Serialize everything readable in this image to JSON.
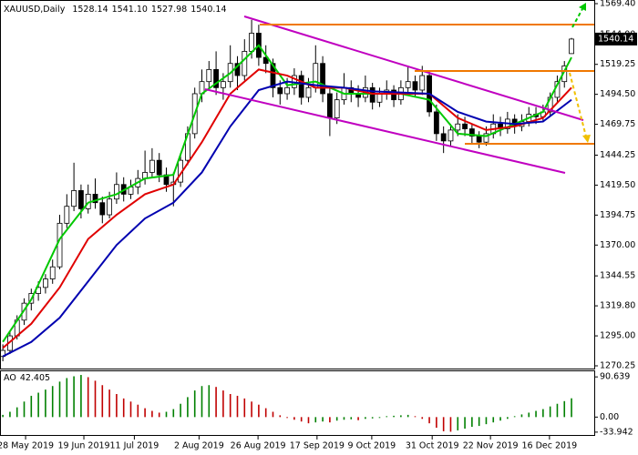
{
  "chart_data": [
    {
      "type": "candlestick",
      "title": "XAUUSD,Daily",
      "quote_labels": [
        "1528.14",
        "1541.10",
        "1527.98",
        "1540.14"
      ],
      "last_price_label": "1540.14",
      "xlim": [
        -0.4,
        83.2
      ],
      "ylim": [
        1268,
        1572.4
      ],
      "yticks": [
        {
          "value": 1569.4,
          "label": "1569.40"
        },
        {
          "value": 1544,
          "label": "1544.00"
        },
        1519.25,
        {
          "value": 1494.5,
          "label": "1494.50"
        },
        1469.75,
        1444.25,
        {
          "value": 1419.5,
          "label": "1419.50"
        },
        1394.75,
        {
          "value": 1370,
          "label": "1370.00"
        },
        1344.55,
        {
          "value": 1319.8,
          "label": "1319.80"
        },
        {
          "value": 1295,
          "label": "1295.00"
        },
        1270.25
      ],
      "up_color": "#ffffff",
      "down_color": "#000000",
      "ohlc": [
        [
          1278,
          1288,
          1274,
          1283
        ],
        [
          1283,
          1298,
          1280,
          1295
        ],
        [
          1295,
          1312,
          1292,
          1308
        ],
        [
          1308,
          1326,
          1304,
          1322
        ],
        [
          1322,
          1334,
          1316,
          1330
        ],
        [
          1330,
          1340,
          1324,
          1335
        ],
        [
          1335,
          1346,
          1330,
          1342
        ],
        [
          1342,
          1358,
          1338,
          1352
        ],
        [
          1352,
          1395,
          1350,
          1388
        ],
        [
          1388,
          1412,
          1384,
          1402
        ],
        [
          1402,
          1438,
          1398,
          1415
        ],
        [
          1415,
          1420,
          1392,
          1400
        ],
        [
          1400,
          1420,
          1396,
          1412
        ],
        [
          1412,
          1425,
          1400,
          1405
        ],
        [
          1405,
          1410,
          1388,
          1395
        ],
        [
          1395,
          1414,
          1392,
          1408
        ],
        [
          1408,
          1430,
          1404,
          1420
        ],
        [
          1420,
          1426,
          1406,
          1412
        ],
        [
          1412,
          1424,
          1408,
          1418
        ],
        [
          1418,
          1432,
          1412,
          1425
        ],
        [
          1425,
          1448,
          1420,
          1430
        ],
        [
          1430,
          1450,
          1426,
          1440
        ],
        [
          1440,
          1446,
          1422,
          1428
        ],
        [
          1428,
          1434,
          1414,
          1420
        ],
        [
          1420,
          1430,
          1402,
          1422
        ],
        [
          1422,
          1446,
          1418,
          1440
        ],
        [
          1440,
          1468,
          1436,
          1462
        ],
        [
          1462,
          1500,
          1458,
          1495
        ],
        [
          1495,
          1515,
          1488,
          1505
        ],
        [
          1505,
          1522,
          1498,
          1515
        ],
        [
          1515,
          1530,
          1494,
          1500
        ],
        [
          1500,
          1512,
          1490,
          1505
        ],
        [
          1505,
          1535,
          1500,
          1520
        ],
        [
          1520,
          1526,
          1498,
          1510
        ],
        [
          1510,
          1540,
          1506,
          1530
        ],
        [
          1530,
          1556,
          1524,
          1545
        ],
        [
          1545,
          1552,
          1518,
          1525
        ],
        [
          1525,
          1535,
          1512,
          1520
        ],
        [
          1520,
          1524,
          1492,
          1500
        ],
        [
          1500,
          1506,
          1486,
          1495
        ],
        [
          1495,
          1508,
          1490,
          1500
        ],
        [
          1500,
          1516,
          1494,
          1510
        ],
        [
          1510,
          1514,
          1486,
          1492
        ],
        [
          1492,
          1508,
          1488,
          1500
        ],
        [
          1500,
          1535,
          1496,
          1520
        ],
        [
          1520,
          1526,
          1488,
          1495
        ],
        [
          1495,
          1500,
          1460,
          1475
        ],
        [
          1475,
          1496,
          1470,
          1490
        ],
        [
          1490,
          1512,
          1486,
          1500
        ],
        [
          1500,
          1506,
          1488,
          1495
        ],
        [
          1495,
          1502,
          1484,
          1492
        ],
        [
          1492,
          1510,
          1488,
          1500
        ],
        [
          1500,
          1504,
          1482,
          1488
        ],
        [
          1488,
          1500,
          1484,
          1495
        ],
        [
          1495,
          1506,
          1490,
          1498
        ],
        [
          1498,
          1502,
          1484,
          1490
        ],
        [
          1490,
          1506,
          1486,
          1500
        ],
        [
          1500,
          1518,
          1496,
          1505
        ],
        [
          1505,
          1510,
          1492,
          1498
        ],
        [
          1498,
          1518,
          1494,
          1510
        ],
        [
          1510,
          1514,
          1476,
          1480
        ],
        [
          1480,
          1486,
          1456,
          1462
        ],
        [
          1462,
          1468,
          1446,
          1456
        ],
        [
          1456,
          1470,
          1452,
          1465
        ],
        [
          1465,
          1478,
          1460,
          1470
        ],
        [
          1470,
          1476,
          1460,
          1466
        ],
        [
          1466,
          1470,
          1454,
          1460
        ],
        [
          1460,
          1464,
          1450,
          1455
        ],
        [
          1455,
          1468,
          1452,
          1462
        ],
        [
          1462,
          1478,
          1458,
          1470
        ],
        [
          1470,
          1476,
          1460,
          1466
        ],
        [
          1466,
          1480,
          1462,
          1474
        ],
        [
          1474,
          1478,
          1462,
          1468
        ],
        [
          1468,
          1478,
          1464,
          1472
        ],
        [
          1472,
          1484,
          1468,
          1478
        ],
        [
          1478,
          1484,
          1470,
          1476
        ],
        [
          1476,
          1486,
          1472,
          1480
        ],
        [
          1480,
          1496,
          1476,
          1492
        ],
        [
          1492,
          1510,
          1488,
          1505
        ],
        [
          1505,
          1522,
          1500,
          1518
        ],
        [
          1528.14,
          1541.1,
          1527.98,
          1540.14
        ]
      ],
      "line_x": [
        0,
        4,
        8,
        12,
        16,
        20,
        24,
        28,
        32,
        36,
        40,
        44,
        48,
        52,
        56,
        60,
        64,
        68,
        72,
        76,
        80
      ],
      "lines": [
        {
          "color": "#00c800",
          "values": [
            1290,
            1325,
            1375,
            1405,
            1412,
            1425,
            1428,
            1495,
            1512,
            1535,
            1502,
            1505,
            1495,
            1495,
            1495,
            1490,
            1462,
            1460,
            1470,
            1480,
            1525
          ]
        },
        {
          "color": "#e00000",
          "values": [
            1285,
            1305,
            1335,
            1375,
            1395,
            1412,
            1420,
            1455,
            1495,
            1515,
            1510,
            1500,
            1500,
            1495,
            1495,
            1495,
            1475,
            1465,
            1468,
            1475,
            1500
          ]
        },
        {
          "color": "#0000b0",
          "values": [
            1278,
            1290,
            1310,
            1340,
            1370,
            1392,
            1405,
            1430,
            1468,
            1498,
            1505,
            1502,
            1500,
            1497,
            1496,
            1495,
            1480,
            1472,
            1470,
            1472,
            1490
          ]
        }
      ]
    },
    {
      "type": "bar",
      "title": "AO",
      "xlim": [
        -0.4,
        83.2
      ],
      "ylim": [
        -42.4,
        103.3
      ],
      "yticks": [
        90.639,
        {
          "value": 0,
          "label": "0.00"
        },
        -33.942
      ],
      "up_color": "#008000",
      "down_color": "#c00000",
      "values": [
        5,
        12,
        22,
        35,
        48,
        55,
        62,
        70,
        80,
        88,
        92,
        95,
        90,
        82,
        72,
        62,
        52,
        42,
        35,
        28,
        20,
        14,
        10,
        12,
        18,
        30,
        45,
        60,
        70,
        72,
        68,
        60,
        52,
        48,
        42,
        35,
        28,
        20,
        12,
        4,
        -2,
        -6,
        -10,
        -14,
        -12,
        -10,
        -12,
        -8,
        -6,
        -5,
        -7,
        -4,
        -3,
        -2,
        2,
        3,
        4,
        5,
        2,
        -4,
        -14,
        -24,
        -32,
        -33,
        -30,
        -26,
        -22,
        -20,
        -16,
        -12,
        -8,
        -4,
        2,
        6,
        10,
        14,
        18,
        24,
        30,
        36,
        42.405
      ],
      "xticks": [
        {
          "value": 3.2,
          "label": "28 May 2019"
        },
        {
          "value": 11.4,
          "label": "19 Jun 2019"
        },
        {
          "value": 18.5,
          "label": "11 Jul 2019"
        },
        {
          "value": 27.6,
          "label": "2 Aug 2019"
        },
        {
          "value": 35.9,
          "label": "26 Aug 2019"
        },
        {
          "value": 44.2,
          "label": "17 Sep 2019"
        },
        {
          "value": 51.9,
          "label": "9 Oct 2019"
        },
        {
          "value": 60.4,
          "label": "31 Oct 2019"
        },
        {
          "value": 68.6,
          "label": "22 Nov 2019"
        },
        {
          "value": 76.9,
          "label": "16 Dec 2019"
        }
      ]
    }
  ]
}
